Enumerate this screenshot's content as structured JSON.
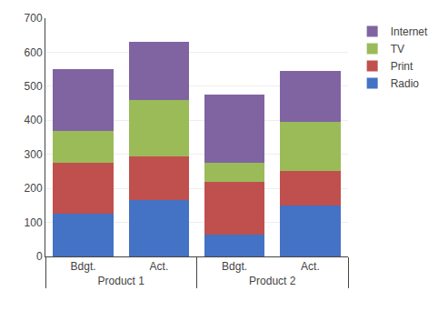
{
  "chart_data": {
    "type": "bar",
    "categories": [
      "Bdgt.",
      "Act.",
      "Bdgt.",
      "Act."
    ],
    "groups": [
      "Product 1",
      "Product 1",
      "Product 2",
      "Product 2"
    ],
    "series": [
      {
        "name": "Radio",
        "color": "#4472C4",
        "values": [
          125,
          165,
          65,
          150
        ]
      },
      {
        "name": "Print",
        "color": "#C0504D",
        "values": [
          150,
          130,
          155,
          100
        ]
      },
      {
        "name": "TV",
        "color": "#9BBB59",
        "values": [
          95,
          165,
          55,
          145
        ]
      },
      {
        "name": "Internet",
        "color": "#8064A2",
        "values": [
          180,
          170,
          200,
          150
        ]
      }
    ],
    "stacked": true,
    "ylim": [
      0,
      700
    ],
    "yticks": [
      0,
      100,
      200,
      300,
      400,
      500,
      600,
      700
    ],
    "grid": true,
    "legend": "upper right"
  }
}
